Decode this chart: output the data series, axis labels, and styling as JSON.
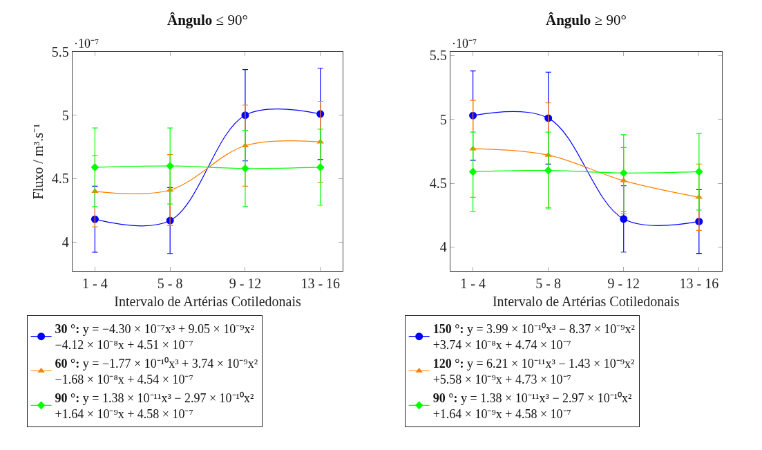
{
  "chart_data": [
    {
      "type": "line",
      "title": "**Ângulo** ≤ 90°",
      "xlabel": "Intervalo de Artérias Cotiledonais",
      "ylabel": "Fluxo / m³.s⁻¹",
      "annotations": [
        "·10⁻⁷"
      ],
      "categories": [
        "1 - 4",
        "5 - 8",
        "9 - 12",
        "13 - 16"
      ],
      "ylim": [
        3.77,
        5.5
      ],
      "yticks": [
        4,
        4.5,
        5,
        5.5
      ],
      "legend": "bottom",
      "line_style": "solid",
      "series": [
        {
          "name": "**30 °:** y = −4.30 × 10⁻⁷x³ + 9.05 × 10⁻⁹x²\n−4.12 × 10⁻⁸x + 4.51 × 10⁻⁷",
          "color": "#0000ff",
          "marker": "circle",
          "values": [
            4.18,
            4.17,
            5.0,
            5.01
          ],
          "errors": [
            0.26,
            0.26,
            0.36,
            0.36
          ]
        },
        {
          "name": "**60 °:** y = −1.77 × 10⁻¹⁰x³ + 3.74 × 10⁻⁹x²\n−1.68 × 10⁻⁸x + 4.54 × 10⁻⁷",
          "color": "#ff7f00",
          "marker": "triangle",
          "values": [
            4.4,
            4.41,
            4.76,
            4.79
          ],
          "errors": [
            0.28,
            0.28,
            0.32,
            0.32
          ]
        },
        {
          "name": "**90 °:** y = 1.38 × 10⁻¹¹x³ − 2.97 × 10⁻¹⁰x²\n+1.64 × 10⁻⁹x + 4.58 × 10⁻⁷",
          "color": "#00ff00",
          "marker": "diamond",
          "values": [
            4.59,
            4.6,
            4.58,
            4.59
          ],
          "errors": [
            0.31,
            0.3,
            0.3,
            0.3
          ]
        }
      ]
    },
    {
      "type": "line",
      "title": "**Ângulo** ≥ 90°",
      "xlabel": "Intervalo de Artérias Cotiledonais",
      "annotations": [
        "·10⁻⁷"
      ],
      "categories": [
        "1 - 4",
        "5 - 8",
        "9 - 12",
        "13 - 16"
      ],
      "ylim": [
        3.81,
        5.53
      ],
      "yticks": [
        4,
        4.5,
        5,
        5.5
      ],
      "legend": "bottom",
      "line_style": "solid",
      "series": [
        {
          "name": "**150 °:** y = 3.99 × 10⁻¹⁰x³ − 8.37 × 10⁻⁹x²\n+3.74 × 10⁻⁸x + 4.74 × 10⁻⁷",
          "color": "#0000ff",
          "marker": "circle",
          "values": [
            5.03,
            5.01,
            4.22,
            4.2
          ],
          "errors": [
            0.35,
            0.36,
            0.26,
            0.25
          ]
        },
        {
          "name": "**120 °:** y = 6.21 × 10⁻¹¹x³ − 1.43 × 10⁻⁹x²\n+5.58 × 10⁻⁹x + 4.73 × 10⁻⁷",
          "color": "#ff7f00",
          "marker": "triangle",
          "values": [
            4.77,
            4.72,
            4.52,
            4.39
          ],
          "errors": [
            0.38,
            0.41,
            0.26,
            0.26
          ]
        },
        {
          "name": "**90 °:** y = 1.38 × 10⁻¹¹x³ − 2.97 × 10⁻¹⁰x²\n+1.64 × 10⁻⁹x + 4.58 × 10⁻⁷",
          "color": "#00ff00",
          "marker": "diamond",
          "values": [
            4.59,
            4.6,
            4.58,
            4.59
          ],
          "errors": [
            0.31,
            0.3,
            0.3,
            0.3
          ]
        }
      ]
    }
  ]
}
